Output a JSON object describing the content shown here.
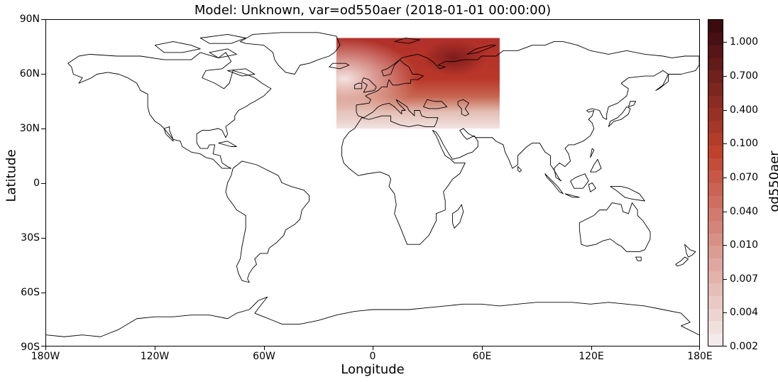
{
  "title": "Model: Unknown, var=od550aer (2018-01-01 00:00:00)",
  "xlabel": "Longitude",
  "ylabel": "Latitude",
  "xticks": [
    "180W",
    "120W",
    "60W",
    "0",
    "60E",
    "120E",
    "180E"
  ],
  "xtick_values": [
    -180,
    -120,
    -60,
    0,
    60,
    120,
    180
  ],
  "yticks": [
    "90N",
    "60N",
    "30N",
    "0",
    "30S",
    "60S",
    "90S"
  ],
  "ytick_values": [
    90,
    60,
    30,
    0,
    -30,
    -60,
    -90
  ],
  "colorbar": {
    "label": "od550aer",
    "tick_labels": [
      "0.002",
      "0.004",
      "0.007",
      "0.010",
      "0.040",
      "0.070",
      "0.100",
      "0.400",
      "0.700",
      "1.000"
    ],
    "levels": 26,
    "colormap": "Reds/brown"
  },
  "chart_data": {
    "type": "heatmap",
    "variable": "od550aer",
    "model": "Unknown",
    "time": "2018-01-01 00:00:00",
    "projection": "PlateCarree",
    "xlim": [
      -180,
      180
    ],
    "ylim": [
      -90,
      90
    ],
    "data_extent": {
      "lon": [
        -20,
        70
      ],
      "lat": [
        30,
        80
      ]
    },
    "colors": {
      "low": "#f3ebea",
      "mid": "#c0412e",
      "high": "#3b0b10"
    }
  }
}
